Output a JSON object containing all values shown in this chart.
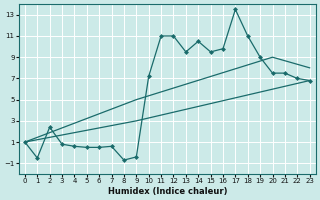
{
  "xlabel": "Humidex (Indice chaleur)",
  "background_color": "#cceae8",
  "line_color": "#1a6b6b",
  "xlim": [
    -0.5,
    23.5
  ],
  "ylim": [
    -2,
    14
  ],
  "xticks": [
    0,
    1,
    2,
    3,
    4,
    5,
    6,
    7,
    8,
    9,
    10,
    11,
    12,
    13,
    14,
    15,
    16,
    17,
    18,
    19,
    20,
    21,
    22,
    23
  ],
  "yticks": [
    -1,
    1,
    3,
    5,
    7,
    9,
    11,
    13
  ],
  "series1_x": [
    0,
    1,
    2,
    3,
    4,
    5,
    6,
    7,
    8,
    9,
    10,
    11,
    12,
    13,
    14,
    15,
    16,
    17,
    18,
    19,
    20,
    21,
    22,
    23
  ],
  "series1_y": [
    1,
    -0.5,
    2.4,
    0.8,
    0.6,
    0.5,
    0.5,
    0.6,
    -0.7,
    -0.4,
    7.2,
    11,
    11,
    9.5,
    10.5,
    9.5,
    9.8,
    13.5,
    11,
    9,
    7.5,
    7.5,
    7,
    6.8
  ],
  "series2_x": [
    0,
    9,
    20,
    23
  ],
  "series2_y": [
    1,
    5,
    9,
    8
  ],
  "series3_x": [
    0,
    9,
    23
  ],
  "series3_y": [
    1,
    3,
    6.8
  ]
}
